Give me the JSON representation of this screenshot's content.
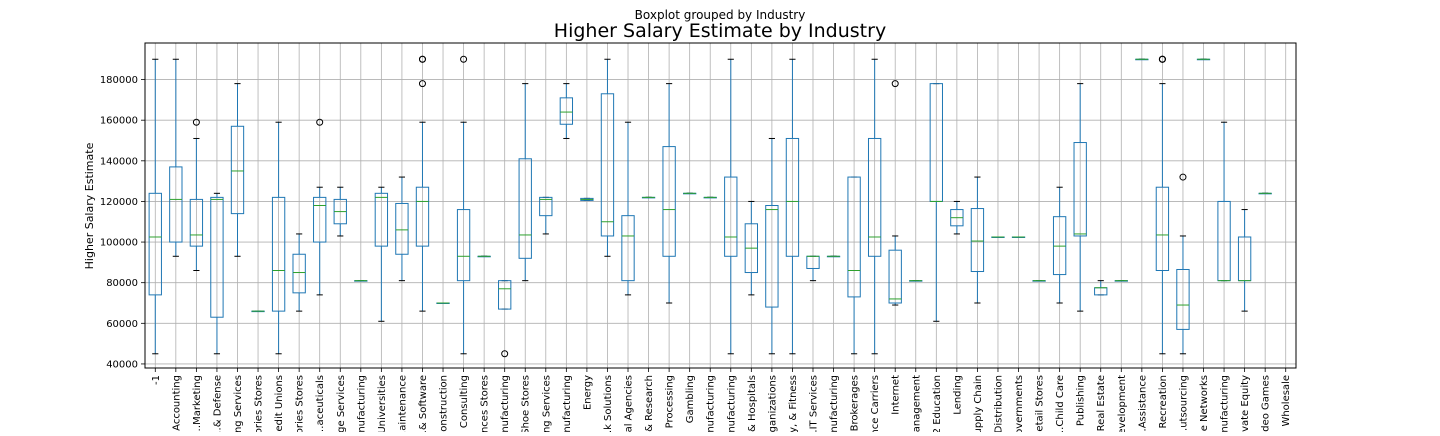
{
  "suptitle": "Boxplot grouped by Industry",
  "chart_data": {
    "type": "box",
    "title": "Higher Salary Estimate by Industry",
    "xlabel": "",
    "ylabel": "Higher Salary Estimate",
    "ylim": [
      38000,
      198000
    ],
    "yticks": [
      40000,
      60000,
      80000,
      100000,
      120000,
      140000,
      160000,
      180000
    ],
    "grid": true,
    "categories": [
      "-1",
      "Accounting",
      "…Marketing",
      "…& Defense",
      "…ng Services",
      "…ories Stores",
      "…edit Unions",
      "…ories Stores",
      "…aceuticals",
      "…ge Services",
      "…nufacturing",
      "…Universities",
      "…aintenance",
      "…& Software",
      "…onstruction",
      "Consulting",
      "…nces Stores",
      "…nufacturing",
      "…Shoe Stores",
      "…ng Services",
      "…nufacturing",
      "Energy",
      "…k Solutions",
      "…al Agencies",
      "…& Research",
      "Processing",
      "Gambling",
      "…nufacturing",
      "…nufacturing",
      "…& Hospitals",
      "…ganizations",
      "…y, & Fitness",
      "…IT Services",
      "…nufacturing",
      "…Brokerages",
      "…nce Carriers",
      "Internet",
      "…anagement",
      "…2 Education",
      "Lending",
      "…upply Chain",
      "…Distribution",
      "…overnments",
      "…etail Stores",
      "…Child Care",
      "Publishing",
      "…Real Estate",
      "…evelopment",
      "…Assistance",
      "Recreation",
      "…utsourcing",
      "…e Networks",
      "…nufacturing",
      "…vate Equity",
      "…deo Games",
      "Wholesale"
    ],
    "series": [
      {
        "min": 45000,
        "q1": 74000,
        "median": 102500,
        "q3": 124000,
        "max": 190000,
        "fliers": []
      },
      {
        "min": 93000,
        "q1": 100000,
        "median": 121000,
        "q3": 137000,
        "max": 190000,
        "fliers": []
      },
      {
        "min": 86000,
        "q1": 98000,
        "median": 103500,
        "q3": 121000,
        "max": 151000,
        "fliers": [
          159000
        ]
      },
      {
        "min": 45000,
        "q1": 63000,
        "median": 121000,
        "q3": 122000,
        "max": 124000,
        "fliers": []
      },
      {
        "min": 93000,
        "q1": 114000,
        "median": 135000,
        "q3": 157000,
        "max": 178000,
        "fliers": []
      },
      {
        "min": 66000,
        "q1": 66000,
        "median": 66000,
        "q3": 66000,
        "max": 66000,
        "fliers": []
      },
      {
        "min": 45000,
        "q1": 66000,
        "median": 86000,
        "q3": 122000,
        "max": 159000,
        "fliers": []
      },
      {
        "min": 66000,
        "q1": 75000,
        "median": 85000,
        "q3": 94000,
        "max": 104000,
        "fliers": []
      },
      {
        "min": 74000,
        "q1": 100000,
        "median": 118000,
        "q3": 122000,
        "max": 127000,
        "fliers": [
          159000
        ]
      },
      {
        "min": 103000,
        "q1": 109000,
        "median": 115000,
        "q3": 121000,
        "max": 127000,
        "fliers": []
      },
      {
        "min": 81000,
        "q1": 81000,
        "median": 81000,
        "q3": 81000,
        "max": 81000,
        "fliers": []
      },
      {
        "min": 61000,
        "q1": 98000,
        "median": 122000,
        "q3": 124000,
        "max": 127000,
        "fliers": []
      },
      {
        "min": 81000,
        "q1": 94000,
        "median": 106000,
        "q3": 119000,
        "max": 132000,
        "fliers": []
      },
      {
        "min": 66000,
        "q1": 98000,
        "median": 120000,
        "q3": 127000,
        "max": 159000,
        "fliers": [
          178000,
          190000,
          190000
        ]
      },
      {
        "min": 70000,
        "q1": 70000,
        "median": 70000,
        "q3": 70000,
        "max": 70000,
        "fliers": []
      },
      {
        "min": 45000,
        "q1": 81000,
        "median": 93000,
        "q3": 116000,
        "max": 159000,
        "fliers": [
          190000
        ]
      },
      {
        "min": 93000,
        "q1": 93000,
        "median": 93000,
        "q3": 93000,
        "max": 93000,
        "fliers": []
      },
      {
        "min": 67000,
        "q1": 67000,
        "median": 77000,
        "q3": 81000,
        "max": 81000,
        "fliers": [
          45000
        ]
      },
      {
        "min": 81000,
        "q1": 92000,
        "median": 103500,
        "q3": 141000,
        "max": 178000,
        "fliers": []
      },
      {
        "min": 104000,
        "q1": 113000,
        "median": 121000,
        "q3": 122000,
        "max": 122000,
        "fliers": []
      },
      {
        "min": 151000,
        "q1": 158000,
        "median": 164000,
        "q3": 171000,
        "max": 178000,
        "fliers": []
      },
      {
        "min": 120500,
        "q1": 120500,
        "median": 121000,
        "q3": 121500,
        "max": 121500,
        "fliers": []
      },
      {
        "min": 93000,
        "q1": 103000,
        "median": 110000,
        "q3": 173000,
        "max": 190000,
        "fliers": []
      },
      {
        "min": 74000,
        "q1": 81000,
        "median": 103000,
        "q3": 113000,
        "max": 159000,
        "fliers": []
      },
      {
        "min": 122000,
        "q1": 122000,
        "median": 122000,
        "q3": 122000,
        "max": 122000,
        "fliers": []
      },
      {
        "min": 70000,
        "q1": 93000,
        "median": 116000,
        "q3": 147000,
        "max": 178000,
        "fliers": []
      },
      {
        "min": 124000,
        "q1": 124000,
        "median": 124000,
        "q3": 124000,
        "max": 124000,
        "fliers": []
      },
      {
        "min": 122000,
        "q1": 122000,
        "median": 122000,
        "q3": 122000,
        "max": 122000,
        "fliers": []
      },
      {
        "min": 45000,
        "q1": 93000,
        "median": 102500,
        "q3": 132000,
        "max": 190000,
        "fliers": []
      },
      {
        "min": 74000,
        "q1": 85000,
        "median": 97000,
        "q3": 109000,
        "max": 120000,
        "fliers": []
      },
      {
        "min": 45000,
        "q1": 68000,
        "median": 116000,
        "q3": 118000,
        "max": 151000,
        "fliers": []
      },
      {
        "min": 45000,
        "q1": 93000,
        "median": 120000,
        "q3": 151000,
        "max": 190000,
        "fliers": []
      },
      {
        "min": 81000,
        "q1": 87000,
        "median": 93000,
        "q3": 93000,
        "max": 93000,
        "fliers": []
      },
      {
        "min": 93000,
        "q1": 93000,
        "median": 93000,
        "q3": 93000,
        "max": 93000,
        "fliers": []
      },
      {
        "min": 45000,
        "q1": 73000,
        "median": 86000,
        "q3": 132000,
        "max": 132000,
        "fliers": []
      },
      {
        "min": 45000,
        "q1": 93000,
        "median": 102500,
        "q3": 151000,
        "max": 190000,
        "fliers": []
      },
      {
        "min": 69000,
        "q1": 70000,
        "median": 72000,
        "q3": 96000,
        "max": 103000,
        "fliers": [
          178000
        ]
      },
      {
        "min": 81000,
        "q1": 81000,
        "median": 81000,
        "q3": 81000,
        "max": 81000,
        "fliers": []
      },
      {
        "min": 61000,
        "q1": 120000,
        "median": 120000,
        "q3": 178000,
        "max": 178000,
        "fliers": []
      },
      {
        "min": 104000,
        "q1": 108000,
        "median": 112000,
        "q3": 116000,
        "max": 120000,
        "fliers": []
      },
      {
        "min": 70000,
        "q1": 85500,
        "median": 100500,
        "q3": 116500,
        "max": 132000,
        "fliers": []
      },
      {
        "min": 102500,
        "q1": 102500,
        "median": 102500,
        "q3": 102500,
        "max": 102500,
        "fliers": []
      },
      {
        "min": 102500,
        "q1": 102500,
        "median": 102500,
        "q3": 102500,
        "max": 102500,
        "fliers": []
      },
      {
        "min": 81000,
        "q1": 81000,
        "median": 81000,
        "q3": 81000,
        "max": 81000,
        "fliers": []
      },
      {
        "min": 70000,
        "q1": 84000,
        "median": 98000,
        "q3": 112500,
        "max": 127000,
        "fliers": []
      },
      {
        "min": 66000,
        "q1": 103000,
        "median": 104000,
        "q3": 149000,
        "max": 178000,
        "fliers": []
      },
      {
        "min": 74000,
        "q1": 74000,
        "median": 77500,
        "q3": 77500,
        "max": 81000,
        "fliers": []
      },
      {
        "min": 81000,
        "q1": 81000,
        "median": 81000,
        "q3": 81000,
        "max": 81000,
        "fliers": []
      },
      {
        "min": 190000,
        "q1": 190000,
        "median": 190000,
        "q3": 190000,
        "max": 190000,
        "fliers": []
      },
      {
        "min": 45000,
        "q1": 86000,
        "median": 103500,
        "q3": 127000,
        "max": 178000,
        "fliers": [
          190000,
          190000,
          190000
        ]
      },
      {
        "min": 45000,
        "q1": 57000,
        "median": 69000,
        "q3": 86500,
        "max": 103000,
        "fliers": [
          132000
        ]
      },
      {
        "min": 190000,
        "q1": 190000,
        "median": 190000,
        "q3": 190000,
        "max": 190000,
        "fliers": []
      },
      {
        "min": 81000,
        "q1": 81000,
        "median": 81000,
        "q3": 120000,
        "max": 159000,
        "fliers": []
      },
      {
        "min": 66000,
        "q1": 81000,
        "median": 81000,
        "q3": 102500,
        "max": 116000,
        "fliers": []
      },
      {
        "min": 124000,
        "q1": 124000,
        "median": 124000,
        "q3": 124000,
        "max": 124000,
        "fliers": []
      }
    ]
  }
}
